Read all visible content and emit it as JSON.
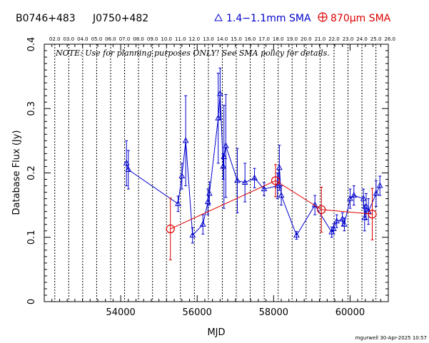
{
  "header": {
    "source_name": "B0746+483",
    "alt_name": "J0750+482",
    "legend": [
      {
        "name": "1.4−1.1mm SMA",
        "color": "#0000cc",
        "marker": "triangle"
      },
      {
        "name": "870µm SMA",
        "color": "#dd0000",
        "marker": "circle-plus"
      }
    ]
  },
  "note": "NOTE: Use for planning purposes ONLY!  See SMA policy for details.",
  "footer": "mgurwell 30-Apr-2025 10:57",
  "chart_data": {
    "type": "scatter",
    "xlabel": "MJD",
    "ylabel": "Database Flux (Jy)",
    "xlim": [
      52000,
      61000
    ],
    "ylim": [
      0,
      0.4
    ],
    "x_ticks": [
      54000,
      56000,
      58000,
      60000
    ],
    "y_ticks": [
      0,
      0.1,
      0.2,
      0.3,
      0.4
    ],
    "y_tick_labels": [
      "0",
      "0.1",
      "0.2",
      "0.3",
      "0.4"
    ],
    "grid": "vertical dotted lines at year boundaries",
    "top_axis_labels": [
      "02.0",
      "03.0",
      "04.0",
      "05.0",
      "06.0",
      "07.0",
      "08.0",
      "09.0",
      "10.0",
      "11.0",
      "12.0",
      "13.0",
      "14.0",
      "15.0",
      "16.0",
      "17.0",
      "18.0",
      "19.0",
      "20.0",
      "21.0",
      "22.0",
      "23.0",
      "24.0",
      "25.0",
      "26.0"
    ],
    "top_axis_mjd": [
      52275,
      52640,
      53005,
      53371,
      53736,
      54101,
      54466,
      54832,
      55197,
      55562,
      55927,
      56293,
      56658,
      57023,
      57388,
      57754,
      58119,
      58484,
      58849,
      59215,
      59580,
      59945,
      60310,
      60676,
      61041
    ],
    "series": [
      {
        "name": "1.4−1.1mm SMA",
        "color": "#0000cc",
        "points": [
          {
            "x": 54150,
            "y": 0.215,
            "err": 0.035
          },
          {
            "x": 54200,
            "y": 0.205,
            "err": 0.03
          },
          {
            "x": 55500,
            "y": 0.152,
            "err": 0.012
          },
          {
            "x": 55600,
            "y": 0.195,
            "err": 0.02
          },
          {
            "x": 55700,
            "y": 0.25,
            "err": 0.07
          },
          {
            "x": 55880,
            "y": 0.103,
            "err": 0.012
          },
          {
            "x": 56150,
            "y": 0.12,
            "err": 0.015
          },
          {
            "x": 56280,
            "y": 0.155,
            "err": 0.02
          },
          {
            "x": 56320,
            "y": 0.168,
            "err": 0.018
          },
          {
            "x": 56550,
            "y": 0.285,
            "err": 0.07
          },
          {
            "x": 56600,
            "y": 0.323,
            "err": 0.04
          },
          {
            "x": 56680,
            "y": 0.21,
            "err": 0.02
          },
          {
            "x": 56700,
            "y": 0.225,
            "err": 0.08
          },
          {
            "x": 56750,
            "y": 0.242,
            "err": 0.08
          },
          {
            "x": 57050,
            "y": 0.188,
            "err": 0.05
          },
          {
            "x": 57250,
            "y": 0.185,
            "err": 0.03
          },
          {
            "x": 57500,
            "y": 0.192,
            "err": 0.015
          },
          {
            "x": 57750,
            "y": 0.175,
            "err": 0.01
          },
          {
            "x": 58100,
            "y": 0.18,
            "err": 0.02
          },
          {
            "x": 58150,
            "y": 0.208,
            "err": 0.035
          },
          {
            "x": 58200,
            "y": 0.165,
            "err": 0.015
          },
          {
            "x": 58600,
            "y": 0.103,
            "err": 0.006
          },
          {
            "x": 59080,
            "y": 0.15,
            "err": 0.015
          },
          {
            "x": 59520,
            "y": 0.108,
            "err": 0.008
          },
          {
            "x": 59570,
            "y": 0.113,
            "err": 0.008
          },
          {
            "x": 59650,
            "y": 0.125,
            "err": 0.01
          },
          {
            "x": 59800,
            "y": 0.128,
            "err": 0.01
          },
          {
            "x": 59850,
            "y": 0.12,
            "err": 0.01
          },
          {
            "x": 60000,
            "y": 0.16,
            "err": 0.015
          },
          {
            "x": 60100,
            "y": 0.165,
            "err": 0.015
          },
          {
            "x": 60350,
            "y": 0.16,
            "err": 0.015
          },
          {
            "x": 60380,
            "y": 0.13,
            "err": 0.02
          },
          {
            "x": 60420,
            "y": 0.148,
            "err": 0.02
          },
          {
            "x": 60480,
            "y": 0.14,
            "err": 0.02
          },
          {
            "x": 60680,
            "y": 0.168,
            "err": 0.02
          },
          {
            "x": 60780,
            "y": 0.18,
            "err": 0.015
          }
        ]
      },
      {
        "name": "870µm SMA",
        "color": "#dd0000",
        "points": [
          {
            "x": 55300,
            "y": 0.113,
            "err": 0.048
          },
          {
            "x": 58050,
            "y": 0.188,
            "err": 0.025
          },
          {
            "x": 59250,
            "y": 0.143,
            "err": 0.035
          },
          {
            "x": 60580,
            "y": 0.136,
            "err": 0.04
          }
        ]
      }
    ]
  }
}
